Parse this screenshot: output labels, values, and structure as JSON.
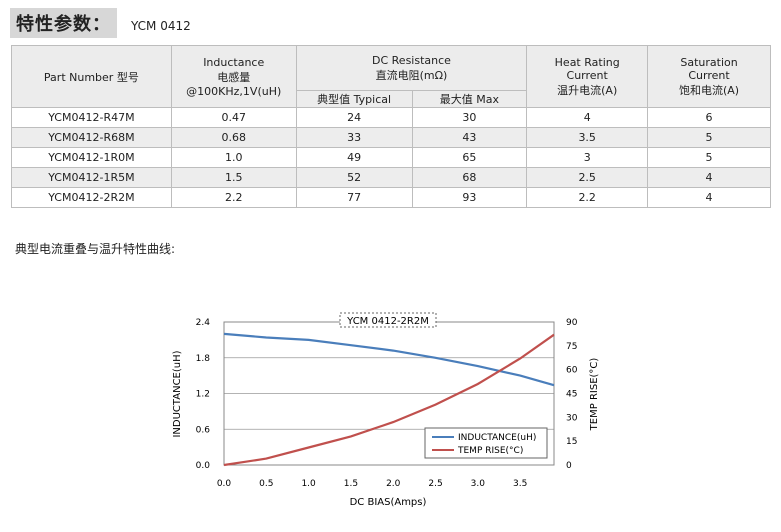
{
  "header": {
    "title": "特性参数：",
    "model": "YCM 0412"
  },
  "table": {
    "col_part_number": "Part Number  型号",
    "col_inductance": [
      "Inductance",
      "电感量",
      "@100KHz,1V(uH)"
    ],
    "col_dcr": [
      "DC Resistance",
      "直流电阻(mΩ)"
    ],
    "col_dcr_typ": "典型值 Typical",
    "col_dcr_max": "最大值  Max",
    "col_heat": [
      "Heat Rating",
      "Current",
      "温升电流(A)"
    ],
    "col_sat": [
      "Saturation",
      "Current",
      "饱和电流(A)"
    ],
    "rows": [
      [
        "YCM0412-R47M",
        "0.47",
        "24",
        "30",
        "4",
        "6"
      ],
      [
        "YCM0412-R68M",
        "0.68",
        "33",
        "43",
        "3.5",
        "5"
      ],
      [
        "YCM0412-1R0M",
        "1.0",
        "49",
        "65",
        "3",
        "5"
      ],
      [
        "YCM0412-1R5M",
        "1.5",
        "52",
        "68",
        "2.5",
        "4"
      ],
      [
        "YCM0412-2R2M",
        "2.2",
        "77",
        "93",
        "2.2",
        "4"
      ]
    ]
  },
  "section_title": "典型电流重叠与温升特性曲线:",
  "chart_data": {
    "type": "line",
    "title": "YCM 0412-2R2M",
    "xlabel": "DC BIAS(Amps)",
    "ylabel": "INDUCTANCE(uH)",
    "y2label": "TEMP RISE(°C)",
    "xlim": [
      0,
      3.9
    ],
    "ylim": [
      0,
      2.4
    ],
    "y2lim": [
      0,
      90
    ],
    "xticks": [
      "0.0",
      "0.5",
      "1.0",
      "1.5",
      "2.0",
      "2.5",
      "3.0",
      "3.5"
    ],
    "yticks": [
      "0.0",
      "0.6",
      "1.2",
      "1.8",
      "2.4"
    ],
    "y2ticks": [
      "0",
      "15",
      "30",
      "45",
      "60",
      "75",
      "90"
    ],
    "grid": "horizontal",
    "legend": "bottom-right",
    "series": [
      {
        "name": "INDUCTANCE(uH)",
        "axis": "left",
        "color": "#4a7ebb",
        "x": [
          0,
          0.5,
          1.0,
          1.5,
          2.0,
          2.5,
          3.0,
          3.5,
          3.9
        ],
        "y": [
          2.2,
          2.14,
          2.1,
          2.01,
          1.92,
          1.8,
          1.66,
          1.5,
          1.34
        ]
      },
      {
        "name": "TEMP RISE(°C)",
        "axis": "right",
        "color": "#c0504d",
        "x": [
          0,
          0.5,
          1.0,
          1.5,
          2.0,
          2.5,
          3.0,
          3.5,
          3.9
        ],
        "y": [
          0,
          4,
          11,
          18,
          27,
          38,
          51,
          67,
          82
        ]
      }
    ]
  }
}
